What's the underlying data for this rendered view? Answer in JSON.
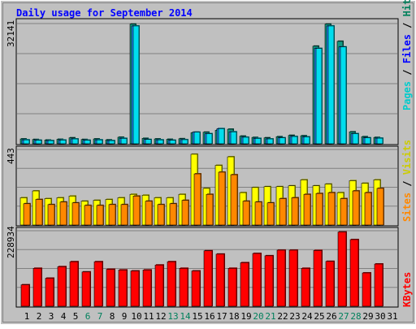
{
  "chart_data": {
    "type": "bar",
    "title": "Daily usage for September 2014",
    "categories": [
      "1",
      "2",
      "3",
      "4",
      "5",
      "6",
      "7",
      "8",
      "9",
      "10",
      "11",
      "12",
      "13",
      "14",
      "15",
      "16",
      "17",
      "18",
      "19",
      "20",
      "21",
      "22",
      "23",
      "24",
      "25",
      "26",
      "27",
      "28",
      "29",
      "30",
      "31"
    ],
    "weekend_days": [
      "6",
      "7",
      "13",
      "14",
      "20",
      "21",
      "27",
      "28"
    ],
    "panels": [
      {
        "id": "hits",
        "ymax_label": "32141",
        "ymax": 32141,
        "series": [
          {
            "name": "Pages",
            "color": "#129a82",
            "values": [
              1300,
              1150,
              1000,
              1200,
              1600,
              1150,
              1300,
              1050,
              1750,
              32000,
              1450,
              1300,
              1200,
              1350,
              2950,
              3100,
              3600,
              3900,
              2050,
              1700,
              1600,
              1900,
              2250,
              2150,
              26100,
              32000,
              27400,
              3200,
              1900,
              1700,
              null
            ]
          },
          {
            "name": "Files",
            "color": "#1e90ff",
            "values": [
              1050,
              950,
              850,
              1000,
              1300,
              950,
              1050,
              850,
              1450,
              31500,
              1150,
              1050,
              950,
              1100,
              3100,
              2700,
              4050,
              3200,
              1750,
              1450,
              1300,
              1600,
              1950,
              1850,
              25500,
              31500,
              25900,
              2700,
              1600,
              1500,
              null
            ]
          },
          {
            "name": "Hits",
            "color": "#00ddee",
            "values": [
              1050,
              950,
              850,
              1000,
              1300,
              950,
              1050,
              850,
              1450,
              31500,
              1150,
              1050,
              950,
              1100,
              3100,
              2700,
              4050,
              3200,
              1750,
              1450,
              1300,
              1600,
              1950,
              1850,
              25500,
              31500,
              25900,
              2700,
              1600,
              1500,
              null
            ]
          }
        ]
      },
      {
        "id": "visits",
        "ymax_label": "443",
        "ymax": 443,
        "series": [
          {
            "name": "Visits",
            "color": "#ffff00",
            "values": [
              160,
              200,
              155,
              160,
              170,
              140,
              145,
              150,
              160,
              180,
              175,
              160,
              160,
              180,
              415,
              215,
              350,
              400,
              190,
              220,
              225,
              225,
              230,
              265,
              230,
              240,
              190,
              260,
              245,
              265,
              null
            ]
          },
          {
            "name": "Sites",
            "color": "#ff8800",
            "values": [
              125,
              150,
              120,
              135,
              130,
              115,
              115,
              120,
              120,
              170,
              140,
              120,
              125,
              145,
              300,
              180,
              310,
              295,
              140,
              135,
              130,
              155,
              160,
              180,
              185,
              190,
              155,
              200,
              190,
              215,
              null
            ]
          }
        ]
      },
      {
        "id": "kbytes",
        "ymax_label": "228934",
        "ymax": 228934,
        "series": [
          {
            "name": "KBytes",
            "color": "#ff0000",
            "values": [
              65000,
              115000,
              85000,
              120000,
              135000,
              104000,
              135000,
              112000,
              110000,
              107000,
              110000,
              125000,
              135000,
              115000,
              107000,
              168000,
              158000,
              115000,
              132000,
              160000,
              153000,
              170000,
              170000,
              115000,
              169000,
              136000,
              225000,
              202000,
              101000,
              128000,
              null
            ]
          }
        ]
      }
    ],
    "legends": {
      "hits": {
        "pages": "Pages",
        "sep1": " / ",
        "files": "Files",
        "sep2": " / ",
        "hits": "Hits"
      },
      "visits": {
        "sites": "Sites",
        "sep": " / ",
        "visits": "Visits"
      },
      "kbytes": {
        "kbytes": "KBytes"
      }
    },
    "colors": {
      "title": "#0000ff",
      "panel_bg": "#c0c0c0",
      "grid": "#808080",
      "weekday_label": "#000000",
      "weekend_label": "#00805c",
      "pages_legend": "#00cccc",
      "files_legend": "#0000ff",
      "hits_legend": "#00805c",
      "sites_legend": "#ff8800",
      "visits_legend": "#cccc00",
      "kbytes_legend": "#ff0000"
    }
  }
}
